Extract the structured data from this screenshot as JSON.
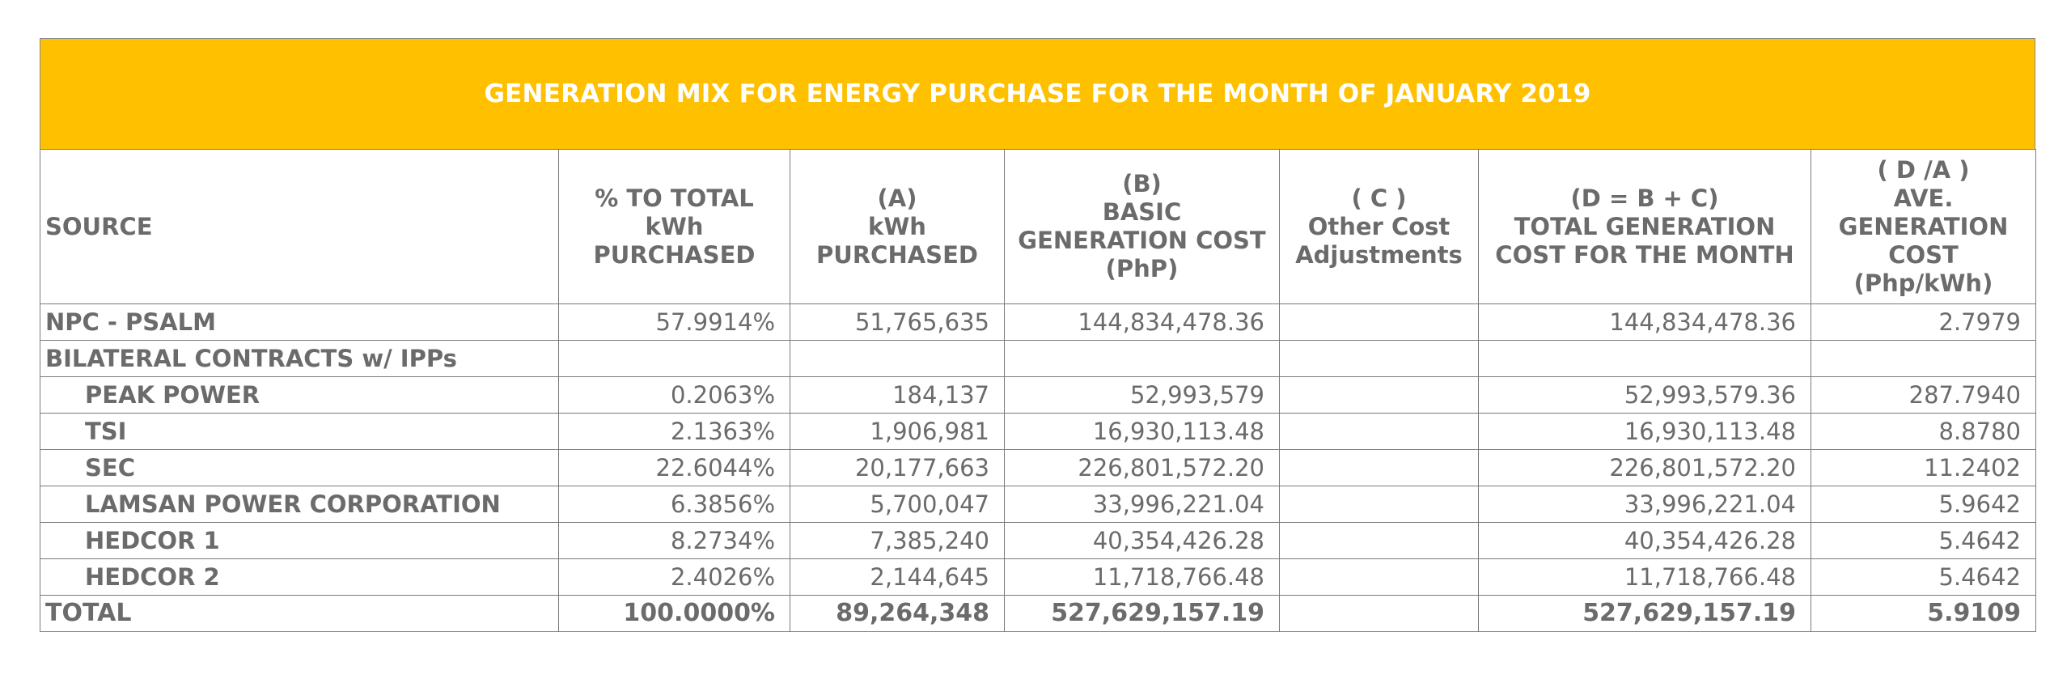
{
  "title": "GENERATION MIX FOR ENERGY PURCHASE FOR THE MONTH OF JANUARY 2019",
  "headers": {
    "source": "SOURCE",
    "pct": [
      "% TO TOTAL",
      "kWh",
      "PURCHASED"
    ],
    "kwh": [
      "(A)",
      "kWh",
      "PURCHASED"
    ],
    "basic": [
      "(B)",
      "BASIC",
      "GENERATION COST",
      "(PhP)"
    ],
    "other": [
      "( C )",
      "Other Cost",
      "Adjustments"
    ],
    "total_cost": [
      "(D = B + C)",
      "TOTAL GENERATION",
      "COST FOR THE MONTH"
    ],
    "ave": [
      "( D /A )",
      "AVE.",
      "GENERATION",
      "COST",
      "(Php/kWh)"
    ]
  },
  "rows": [
    {
      "source": "NPC - PSALM",
      "pct": "57.9914%",
      "kwh": "51,765,635",
      "basic": "144,834,478.36",
      "other": "",
      "total_cost": "144,834,478.36",
      "ave": "2.7979"
    },
    {
      "source": "BILATERAL CONTRACTS w/ IPPs",
      "pct": "",
      "kwh": "",
      "basic": "",
      "other": "",
      "total_cost": "",
      "ave": ""
    },
    {
      "source": "PEAK POWER",
      "pct": "0.2063%",
      "kwh": "184,137",
      "basic": "52,993,579",
      "other": "",
      "total_cost": "52,993,579.36",
      "ave": "287.7940"
    },
    {
      "source": "TSI",
      "pct": "2.1363%",
      "kwh": "1,906,981",
      "basic": "16,930,113.48",
      "other": "",
      "total_cost": "16,930,113.48",
      "ave": "8.8780"
    },
    {
      "source": "SEC",
      "pct": "22.6044%",
      "kwh": "20,177,663",
      "basic": "226,801,572.20",
      "other": "",
      "total_cost": "226,801,572.20",
      "ave": "11.2402"
    },
    {
      "source": "LAMSAN POWER CORPORATION",
      "pct": "6.3856%",
      "kwh": "5,700,047",
      "basic": "33,996,221.04",
      "other": "",
      "total_cost": "33,996,221.04",
      "ave": "5.9642"
    },
    {
      "source": "HEDCOR 1",
      "pct": "8.2734%",
      "kwh": "7,385,240",
      "basic": "40,354,426.28",
      "other": "",
      "total_cost": "40,354,426.28",
      "ave": "5.4642"
    },
    {
      "source": "HEDCOR 2",
      "pct": "2.4026%",
      "kwh": "2,144,645",
      "basic": "11,718,766.48",
      "other": "",
      "total_cost": "11,718,766.48",
      "ave": "5.4642"
    }
  ],
  "total": {
    "source": "TOTAL",
    "pct": "100.0000%",
    "kwh": "89,264,348",
    "basic": "527,629,157.19",
    "other": "",
    "total_cost": "527,629,157.19",
    "ave": "5.9109"
  },
  "colors": {
    "banner": "#ffc000",
    "text": "#6b6b6b",
    "border": "#7a7a7a"
  }
}
